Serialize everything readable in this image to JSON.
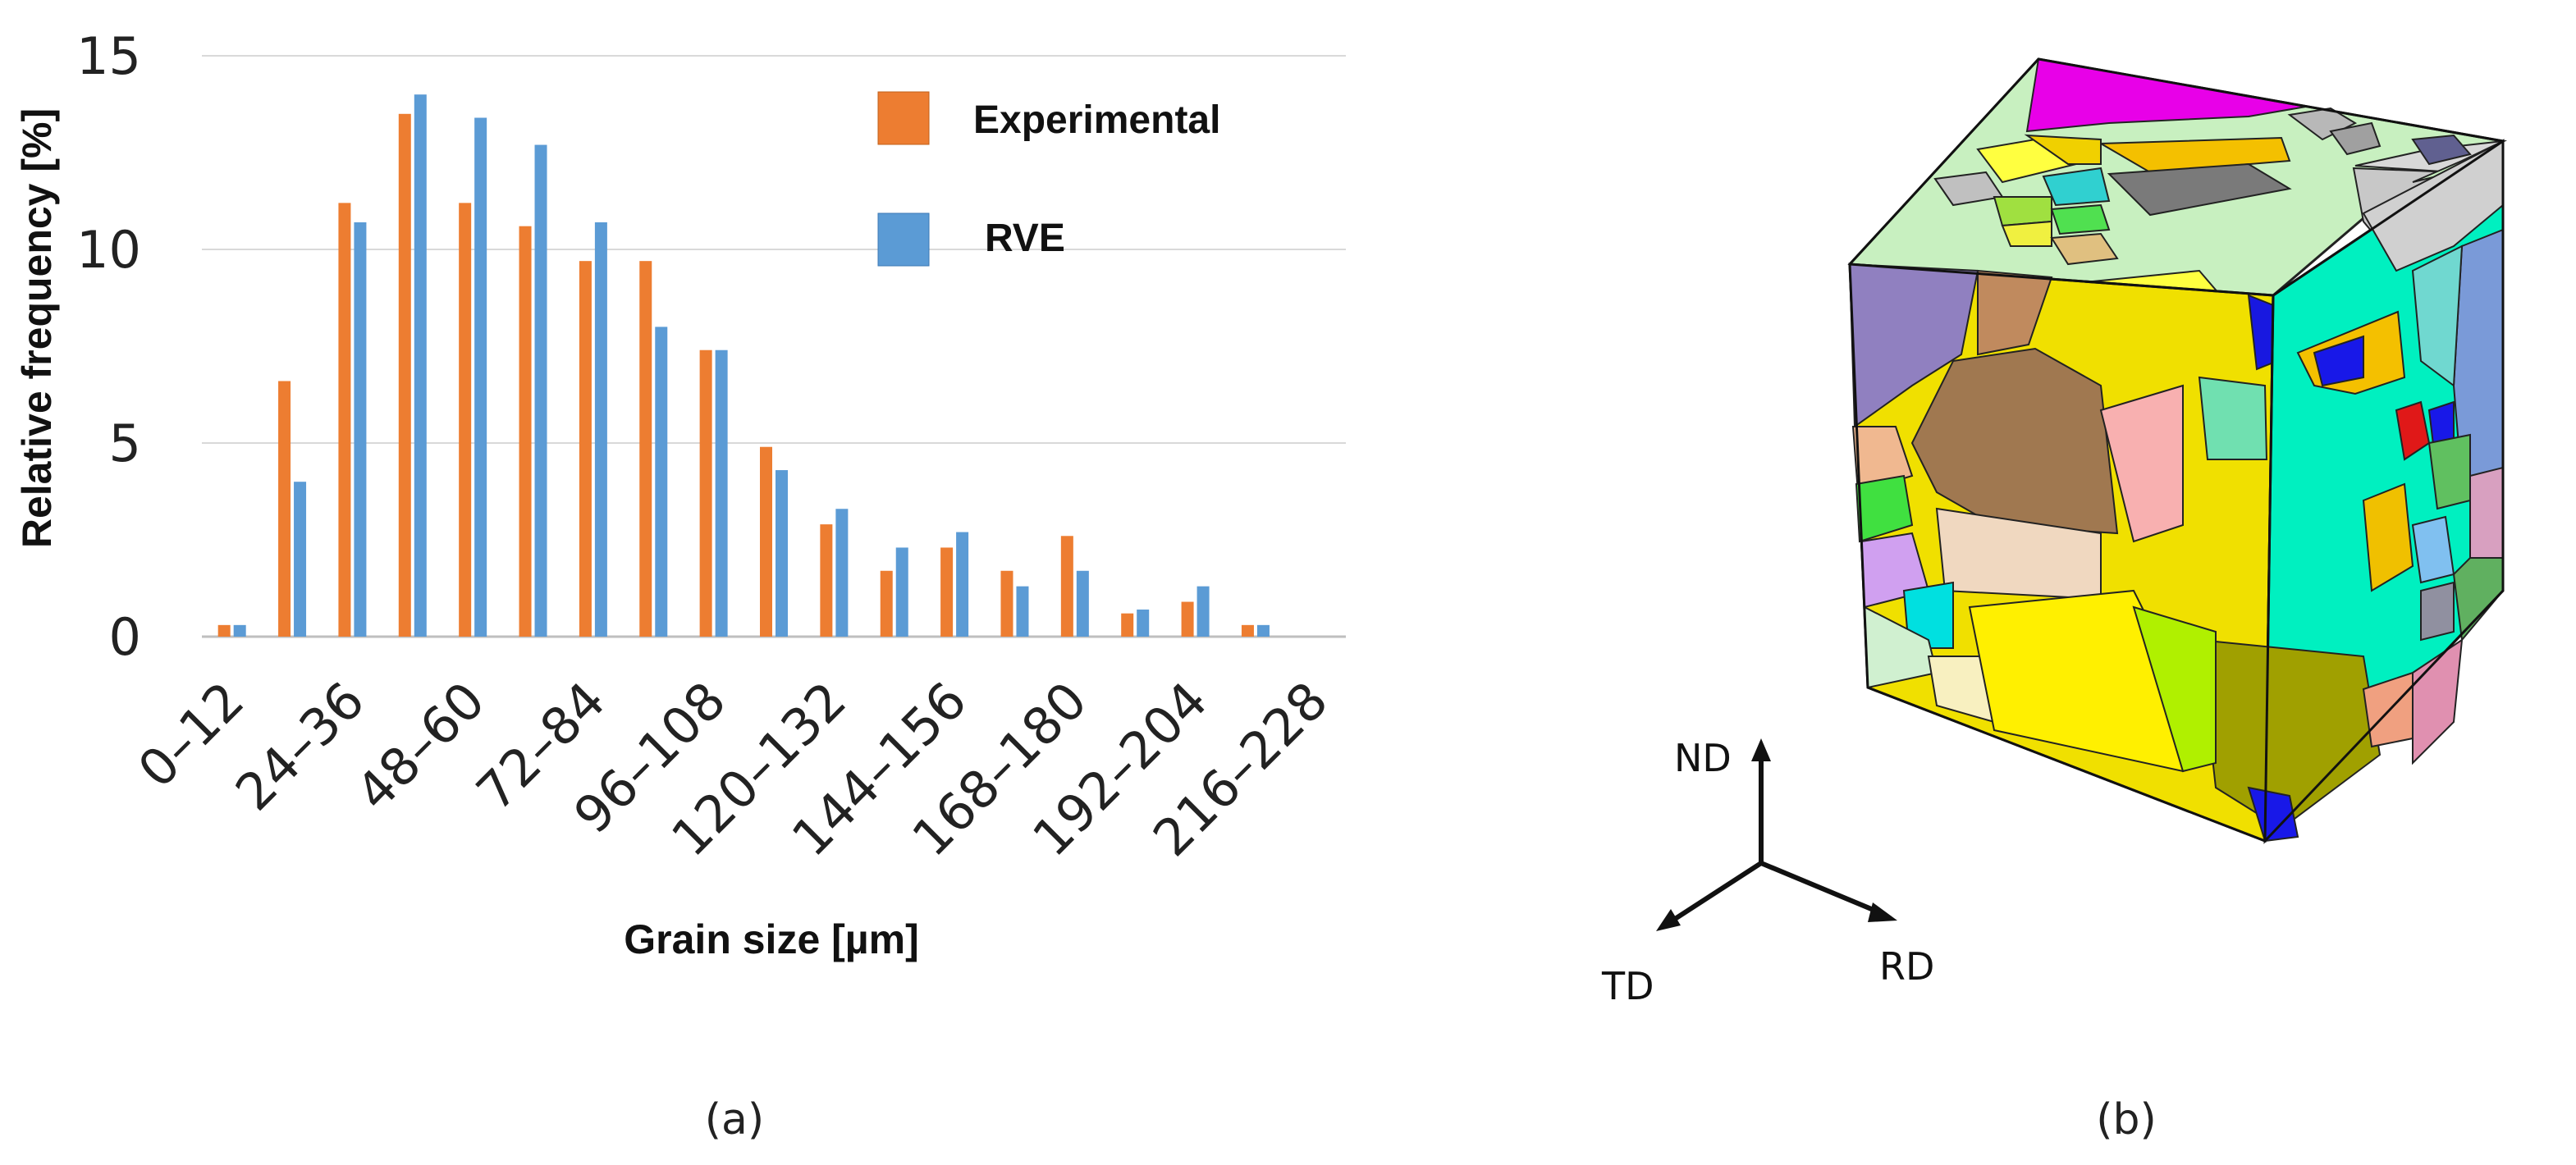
{
  "chart_data": {
    "type": "bar",
    "title": "",
    "xlabel": "Grain size [µm]",
    "ylabel": "Relative frequency [%]",
    "ylim": [
      0,
      15
    ],
    "yticks": [
      "0",
      "5",
      "10",
      "15"
    ],
    "grid": "horizontal",
    "legend_position": "top-right",
    "categories": [
      "0–12",
      "12–24",
      "24–36",
      "36–48",
      "48–60",
      "60–72",
      "72–84",
      "84–96",
      "96–108",
      "108–120",
      "120–132",
      "132–144",
      "144–156",
      "156–168",
      "168–180",
      "180–192",
      "192–204",
      "204–216",
      "216–228"
    ],
    "visible_tick_labels": [
      "0–12",
      "24–36",
      "48–60",
      "72–84",
      "96–108",
      "120–132",
      "144–156",
      "168–180",
      "192–204",
      "216–228"
    ],
    "series": [
      {
        "name": "Experimental",
        "color": "#ED7D31",
        "values": [
          0.3,
          6.6,
          11.2,
          13.5,
          11.2,
          10.6,
          9.7,
          9.7,
          7.4,
          4.9,
          2.9,
          1.7,
          2.3,
          1.7,
          2.6,
          0.6,
          0.9,
          0.3,
          0
        ]
      },
      {
        "name": "RVE",
        "color": "#5B9BD5",
        "values": [
          0.3,
          4.0,
          10.7,
          14.0,
          13.4,
          12.7,
          10.7,
          8.0,
          7.4,
          4.3,
          3.3,
          2.3,
          2.7,
          1.3,
          1.7,
          0.7,
          1.3,
          0.3,
          0
        ]
      }
    ]
  },
  "panel_b": {
    "axes": {
      "nd": "ND",
      "td": "TD",
      "rd": "RD"
    },
    "top_face_colors": [
      "#E800E8",
      "#B8B8B8",
      "#A0A0A0",
      "#C8C8C8",
      "#F0D000",
      "#E0C080",
      "#FFFF40",
      "#30D0D0",
      "#C0C0C0",
      "#7A7A7A",
      "#C8F0C0",
      "#F4C000",
      "#D8D8D8",
      "#606090",
      "#A0E040",
      "#50E050",
      "#F0F040"
    ],
    "left_face_colors": [
      "#9080C0",
      "#C08A5E",
      "#A07850",
      "#F0E000",
      "#F0B890",
      "#40E040",
      "#D0A0F0",
      "#F0D8C0",
      "#F8B0B0",
      "#00E0E0",
      "#D0F0D0",
      "#F8F0C0",
      "#FFF000",
      "#70E0B0",
      "#1818E0"
    ],
    "right_face_colors": [
      "#D0D0D0",
      "#F4C000",
      "#7A9AD8",
      "#70D8D0",
      "#00F0C0",
      "#1818E8",
      "#E01818",
      "#60C060",
      "#D8A0C0",
      "#F0C000",
      "#60B060",
      "#E090B0",
      "#A0A000",
      "#B0F000",
      "#F0A080",
      "#80C0F0",
      "#9090A0"
    ]
  },
  "captions": {
    "a": "(a)",
    "b": "(b)"
  }
}
